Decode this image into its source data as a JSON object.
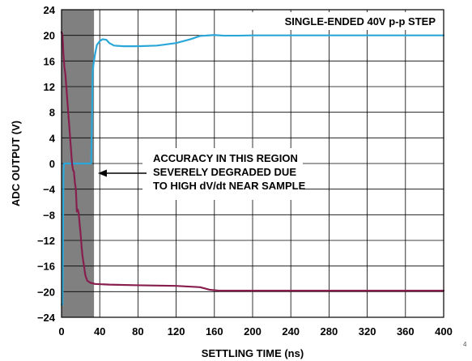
{
  "chart_data": {
    "type": "line",
    "xlabel": "SETTLING TIME (ns)",
    "ylabel": "ADC OUTPUT (V)",
    "xlim": [
      0,
      400
    ],
    "ylim": [
      -24,
      24
    ],
    "x_ticks": [
      0,
      40,
      80,
      120,
      160,
      200,
      240,
      280,
      320,
      360,
      400
    ],
    "y_ticks": [
      24,
      20,
      16,
      12,
      8,
      4,
      0,
      -4,
      -8,
      -12,
      -16,
      -20,
      -24
    ],
    "x_tick_labels": [
      "0",
      "40",
      "80",
      "120",
      "160",
      "200",
      "240",
      "280",
      "320",
      "360",
      "400"
    ],
    "y_tick_labels": [
      "24",
      "20",
      "16",
      "12",
      "8",
      "4",
      "0",
      "−4",
      "−8",
      "−12",
      "−16",
      "−20",
      "−24"
    ],
    "grid": true,
    "legend_text": "SINGLE-ENDED 40V p-p STEP",
    "legend_placement": "top-right",
    "shaded_region": {
      "x": [
        0,
        34
      ],
      "color": "#808080"
    },
    "annotation": {
      "lines": [
        "ACCURACY IN THIS REGION",
        "SEVERELY DEGRADED DUE",
        "TO HIGH dV/dt NEAR SAMPLE"
      ],
      "arrow_target": {
        "x": 33,
        "y": 0
      }
    },
    "series": [
      {
        "color": "#2aa7d8",
        "points": [
          [
            0,
            -22
          ],
          [
            1,
            -22
          ],
          [
            2,
            -2
          ],
          [
            2.5,
            0
          ],
          [
            31,
            0
          ],
          [
            32,
            8
          ],
          [
            32.5,
            14
          ],
          [
            33,
            15
          ],
          [
            34,
            16
          ],
          [
            35,
            17
          ],
          [
            37,
            18.5
          ],
          [
            40,
            19.1
          ],
          [
            43,
            19.4
          ],
          [
            47,
            19.3
          ],
          [
            50,
            18.8
          ],
          [
            55,
            18.4
          ],
          [
            65,
            18.3
          ],
          [
            80,
            18.3
          ],
          [
            100,
            18.4
          ],
          [
            120,
            18.8
          ],
          [
            135,
            19.4
          ],
          [
            145,
            19.9
          ],
          [
            160,
            20.05
          ],
          [
            170,
            19.95
          ],
          [
            185,
            19.95
          ],
          [
            200,
            20.0
          ],
          [
            250,
            20.0
          ],
          [
            300,
            20.0
          ],
          [
            350,
            20.0
          ],
          [
            400,
            20.0
          ]
        ]
      },
      {
        "color": "#871e4e",
        "points": [
          [
            0,
            20.5
          ],
          [
            1,
            20
          ],
          [
            2,
            17
          ],
          [
            3,
            15
          ],
          [
            4,
            14
          ],
          [
            5,
            12
          ],
          [
            6,
            10
          ],
          [
            7,
            8
          ],
          [
            8,
            6
          ],
          [
            9,
            4
          ],
          [
            10,
            2
          ],
          [
            11,
            0
          ],
          [
            12,
            -1
          ],
          [
            13,
            -1.3
          ],
          [
            14,
            -3
          ],
          [
            15,
            -4
          ],
          [
            16,
            -7.5
          ],
          [
            17,
            -7.2
          ],
          [
            18,
            -7.8
          ],
          [
            19,
            -9.5
          ],
          [
            20,
            -11
          ],
          [
            21,
            -13
          ],
          [
            22,
            -14.5
          ],
          [
            23,
            -15.5
          ],
          [
            24,
            -16.5
          ],
          [
            25,
            -17.5
          ],
          [
            27,
            -18.3
          ],
          [
            30,
            -18.6
          ],
          [
            35,
            -18.8
          ],
          [
            50,
            -18.9
          ],
          [
            80,
            -19.0
          ],
          [
            120,
            -19.1
          ],
          [
            145,
            -19.3
          ],
          [
            155,
            -19.7
          ],
          [
            165,
            -19.85
          ],
          [
            200,
            -19.85
          ],
          [
            250,
            -19.85
          ],
          [
            300,
            -19.85
          ],
          [
            350,
            -19.85
          ],
          [
            400,
            -19.85
          ]
        ]
      }
    ]
  },
  "figure_number": "4"
}
